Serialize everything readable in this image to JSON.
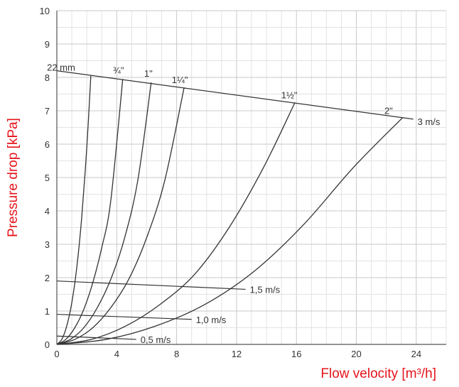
{
  "chart_data": {
    "type": "line",
    "xlabel": "Flow velocity [m³/h]",
    "ylabel": "Pressure drop [kPa]",
    "xlim": [
      0,
      26
    ],
    "ylim": [
      0,
      10
    ],
    "x_ticks": [
      "0",
      "4",
      "8",
      "12",
      "16",
      "20",
      "24"
    ],
    "y_ticks": [
      "0",
      "1",
      "2",
      "3",
      "4",
      "5",
      "6",
      "7",
      "8",
      "9",
      "10"
    ],
    "grid": true,
    "axis_title_color": "#e5141b",
    "line_color": "#333333",
    "series": [
      {
        "name": "22 mm",
        "x": [
          0,
          0.33,
          0.66,
          1.0,
          1.33,
          1.66,
          2.0,
          2.27
        ],
        "y": [
          0,
          0.15,
          0.55,
          1.25,
          2.3,
          3.8,
          5.9,
          8.05
        ]
      },
      {
        "name": "¾\"",
        "x": [
          0,
          0.6,
          1.2,
          1.8,
          2.4,
          3.0,
          3.6,
          4.4
        ],
        "y": [
          0,
          0.15,
          0.5,
          1.05,
          1.85,
          2.9,
          4.3,
          7.95
        ]
      },
      {
        "name": "1\"",
        "x": [
          0,
          0.9,
          1.8,
          2.7,
          3.6,
          4.5,
          5.4,
          6.3
        ],
        "y": [
          0,
          0.15,
          0.5,
          1.1,
          1.95,
          3.15,
          4.9,
          7.85
        ]
      },
      {
        "name": "1¼\"",
        "x": [
          0,
          1.2,
          2.4,
          3.6,
          4.8,
          6.0,
          7.2,
          8.5
        ],
        "y": [
          0,
          0.15,
          0.5,
          1.1,
          1.95,
          3.2,
          4.9,
          7.7
        ]
      },
      {
        "name": "1½\"",
        "x": [
          0,
          2.3,
          4.6,
          6.9,
          9.2,
          11.5,
          13.8,
          15.9
        ],
        "y": [
          0,
          0.15,
          0.55,
          1.2,
          2.1,
          3.5,
          5.3,
          7.25
        ]
      },
      {
        "name": "2\"",
        "x": [
          0,
          3.3,
          6.6,
          9.9,
          13.2,
          16.5,
          19.8,
          23.1
        ],
        "y": [
          0,
          0.15,
          0.55,
          1.2,
          2.2,
          3.6,
          5.3,
          6.8
        ]
      }
    ],
    "velocity_lines": [
      {
        "label": "3 m/s",
        "x": [
          0,
          23.8
        ],
        "y": [
          8.2,
          6.75
        ]
      },
      {
        "label": "1,5 m/s",
        "x": [
          0,
          12.6
        ],
        "y": [
          1.9,
          1.65
        ]
      },
      {
        "label": "1,0 m/s",
        "x": [
          0,
          9.0
        ],
        "y": [
          0.9,
          0.75
        ]
      },
      {
        "label": "0,5 m/s",
        "x": [
          0,
          5.3
        ],
        "y": [
          0.25,
          0.15
        ]
      }
    ]
  }
}
